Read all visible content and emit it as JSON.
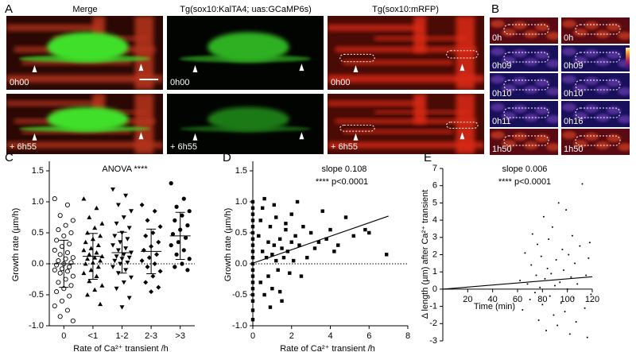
{
  "panel_a": {
    "label": "A",
    "columns": [
      "Merge",
      "Tg(sox10:KalTA4; uas:GCaMP6s)",
      "Tg(sox10:mRFP)"
    ],
    "time_labels": [
      "0h00",
      "+ 6h55"
    ]
  },
  "panel_b": {
    "label": "B",
    "labels": [
      [
        "0h",
        "0h09",
        "0h10",
        "0h11",
        "1h50"
      ],
      [
        "0h",
        "0h09",
        "0h10",
        "0h16",
        "1h50"
      ]
    ]
  },
  "chart_data": [
    {
      "type": "strip",
      "panel_label": "C",
      "title": "ANOVA ****",
      "y_label": "Growth rate (µm/h)",
      "x_label": "Rate of Ca²⁺ transient /h",
      "categories": [
        "0",
        "<1",
        "1-2",
        "2-3",
        ">3"
      ],
      "markers": [
        "open-circle",
        "triangle-up",
        "triangle-down",
        "diamond",
        "circle"
      ],
      "values": [
        [
          1.05,
          0.95,
          0.78,
          0.7,
          0.62,
          0.55,
          0.5,
          0.45,
          0.38,
          0.32,
          0.28,
          0.22,
          0.18,
          0.15,
          0.1,
          0.08,
          0.05,
          0.02,
          0.0,
          -0.02,
          -0.05,
          -0.08,
          -0.1,
          -0.12,
          -0.15,
          -0.2,
          -0.25,
          -0.3,
          -0.35,
          -0.4,
          -0.45,
          -0.52,
          -0.6,
          -0.68,
          -0.75,
          -0.85,
          -0.92
        ],
        [
          1.05,
          0.9,
          0.75,
          0.65,
          0.58,
          0.5,
          0.45,
          0.4,
          0.35,
          0.3,
          0.25,
          0.22,
          0.18,
          0.15,
          0.12,
          0.1,
          0.08,
          0.05,
          0.02,
          0.0,
          -0.05,
          -0.1,
          -0.15,
          -0.2,
          -0.28,
          -0.35,
          -0.42,
          -0.5,
          -0.65
        ],
        [
          1.2,
          1.1,
          0.95,
          0.85,
          0.75,
          0.65,
          0.58,
          0.5,
          0.45,
          0.4,
          0.35,
          0.3,
          0.25,
          0.22,
          0.18,
          0.15,
          0.12,
          0.1,
          0.08,
          0.05,
          0.02,
          0.0,
          -0.05,
          -0.1,
          -0.15,
          -0.22,
          -0.3,
          -0.4,
          -0.55,
          -0.7
        ],
        [
          0.95,
          0.85,
          0.7,
          0.6,
          0.5,
          0.45,
          0.35,
          0.28,
          0.22,
          0.15,
          0.1,
          0.05,
          0.0,
          -0.05,
          -0.12,
          -0.2,
          -0.3,
          -0.38,
          -0.45
        ],
        [
          1.3,
          1.05,
          0.92,
          0.85,
          0.78,
          0.7,
          0.62,
          0.55,
          0.48,
          0.42,
          0.35,
          0.3,
          0.22,
          0.15,
          0.08,
          0.0,
          -0.05,
          -0.1
        ]
      ],
      "means": [
        0.0,
        0.12,
        0.18,
        0.2,
        0.45
      ],
      "sds": [
        0.38,
        0.37,
        0.33,
        0.36,
        0.38
      ],
      "hline": 0,
      "color": "#000000",
      "ylim": [
        -1,
        1.5
      ],
      "yticks": [
        {
          "value": -1,
          "label": "-1.0"
        },
        -0.5,
        {
          "value": 0,
          "label": "0.0"
        },
        0.5,
        {
          "value": 1,
          "label": "1.0"
        },
        1.5
      ]
    },
    {
      "type": "scatter",
      "panel_label": "D",
      "annotations": [
        "slope 0.108",
        "**** p<0.0001"
      ],
      "y_label": "Growth rate (µm/h)",
      "x_label": "Rate of Ca²⁺ transient /h",
      "marker": "square",
      "color": "#000000",
      "x": [
        0,
        0,
        0,
        0,
        0,
        0,
        0,
        0,
        0,
        0,
        0,
        0,
        0,
        0,
        0,
        0,
        0,
        0,
        0,
        0.3,
        0.4,
        0.5,
        0.5,
        0.6,
        0.7,
        0.8,
        0.8,
        0.9,
        1.0,
        1.0,
        1.1,
        1.2,
        1.2,
        1.3,
        1.4,
        1.5,
        1.5,
        1.6,
        1.7,
        1.8,
        1.9,
        2.0,
        2.0,
        2.1,
        2.2,
        2.4,
        2.5,
        2.6,
        2.8,
        3.0,
        3.2,
        3.4,
        3.6,
        3.8,
        4.0,
        4.2,
        4.4,
        4.8,
        5.2,
        5.8,
        6.0,
        6.9,
        0.6,
        1.1,
        1.4,
        0.9,
        1.7,
        2.3,
        0.4
      ],
      "values": [
        1.0,
        0.9,
        0.8,
        0.7,
        0.6,
        0.5,
        0.4,
        0.3,
        0.2,
        0.1,
        0.0,
        -0.1,
        -0.2,
        -0.3,
        -0.4,
        -0.5,
        -0.6,
        -0.75,
        -0.9,
        0.45,
        -0.3,
        0.2,
        0.9,
        -0.5,
        0.1,
        0.35,
        -0.2,
        0.6,
        0.15,
        -0.4,
        0.3,
        0.05,
        0.75,
        -0.1,
        0.4,
        0.25,
        -0.6,
        0.1,
        0.55,
        0.2,
        -0.15,
        0.35,
        0.8,
        0.05,
        0.45,
        0.3,
        -0.2,
        0.6,
        0.1,
        0.5,
        0.25,
        0.35,
        0.85,
        0.4,
        0.55,
        0.2,
        0.3,
        0.75,
        0.45,
        0.55,
        0.5,
        0.15,
        1.05,
        0.95,
        -0.45,
        -0.7,
        0.65,
        1.0,
        0.7
      ],
      "fit": {
        "x": [
          0,
          7
        ],
        "y": [
          0.01,
          0.77
        ]
      },
      "hline": 0,
      "xlim": [
        0,
        8
      ],
      "xticks": [
        0,
        2,
        4,
        6,
        8
      ],
      "ylim": [
        -1,
        1.5
      ],
      "yticks": [
        {
          "value": -1,
          "label": "-1.0"
        },
        -0.5,
        {
          "value": 0,
          "label": "0.0"
        },
        0.5,
        {
          "value": 1,
          "label": "1.0"
        },
        1.5
      ]
    },
    {
      "type": "scatter",
      "panel_label": "E",
      "annotations": [
        "slope 0.006",
        "**** p<0.0001"
      ],
      "y_label": "Δ length (µm) after Ca²⁺ transient",
      "x_label": "Time (min)",
      "marker": "dot",
      "color": "#000000",
      "axis_at_zero": true,
      "x": [
        62,
        64,
        66,
        68,
        70,
        71,
        72,
        74,
        75,
        76,
        77,
        78,
        79,
        80,
        81,
        82,
        83,
        84,
        85,
        86,
        87,
        88,
        89,
        90,
        91,
        92,
        93,
        94,
        95,
        96,
        97,
        98,
        99,
        100,
        101,
        102,
        103,
        104,
        105,
        106,
        107,
        108,
        110,
        112,
        114,
        115,
        116,
        117,
        118,
        119
      ],
      "values": [
        0.5,
        -1.2,
        2.1,
        0.3,
        -0.6,
        1.4,
        3.2,
        -0.2,
        0.8,
        2.6,
        -1.8,
        0.1,
        1.9,
        -0.9,
        4.2,
        0.6,
        -2.4,
        1.2,
        2.9,
        -0.4,
        0.9,
        3.6,
        -1.5,
        0.2,
        1.7,
        -2.1,
        5.0,
        0.4,
        -0.8,
        2.3,
        1.1,
        -1.3,
        4.6,
        0.0,
        2.0,
        -2.6,
        0.7,
        3.1,
        -0.5,
        1.5,
        -1.9,
        0.3,
        2.5,
        6.1,
        -1.1,
        0.8,
        -2.8,
        1.8,
        2.7,
        -0.3
      ],
      "fit": {
        "x": [
          0,
          120
        ],
        "y": [
          0,
          0.72
        ]
      },
      "xlim": [
        0,
        120
      ],
      "xticks": [
        20,
        40,
        60,
        80,
        100,
        120
      ],
      "ylim": [
        -3,
        7
      ],
      "yticks": [
        -3,
        -2,
        -1,
        0,
        1,
        2,
        3,
        4,
        5,
        6,
        7
      ]
    }
  ]
}
